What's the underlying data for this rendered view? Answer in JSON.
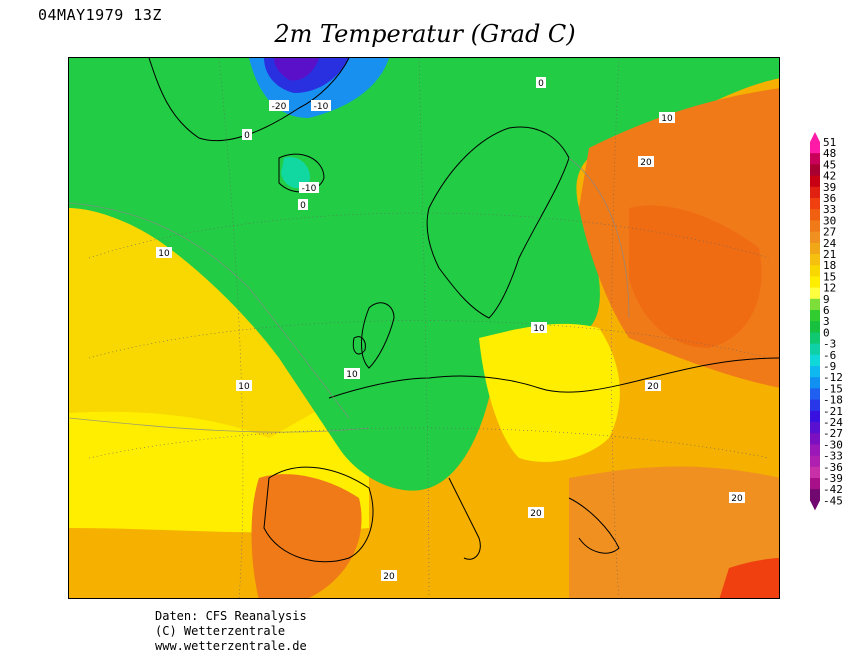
{
  "header": {
    "datetime": "04MAY1979 13Z",
    "title": "2m Temperatur (Grad C)"
  },
  "legend": {
    "ticks": [
      "51",
      "48",
      "45",
      "42",
      "39",
      "36",
      "33",
      "30",
      "27",
      "24",
      "21",
      "18",
      "15",
      "12",
      "9",
      "6",
      "3",
      "0",
      "-3",
      "-6",
      "-9",
      "-12",
      "-15",
      "-18",
      "-21",
      "-24",
      "-27",
      "-30",
      "-33",
      "-36",
      "-39",
      "-42",
      "-45"
    ],
    "colors": [
      "#ff1aa8",
      "#c8005a",
      "#a80030",
      "#c80014",
      "#e02010",
      "#f04010",
      "#f06010",
      "#f07a18",
      "#f09020",
      "#f0a818",
      "#f5c010",
      "#f8d800",
      "#ffee00",
      "#ffff40",
      "#7dde3a",
      "#30cc30",
      "#18c040",
      "#10c870",
      "#10d0a8",
      "#10d8d8",
      "#10b8f0",
      "#1090f0",
      "#2060f0",
      "#2838e8",
      "#3810e0",
      "#5a10d0",
      "#7a10c0",
      "#9a18b8",
      "#b020b0",
      "#c830a8",
      "#a8108a",
      "#700870"
    ]
  },
  "map": {
    "contour_labels": [
      "-20",
      "-10",
      "0",
      "10",
      "20"
    ],
    "colors": {
      "hot": "#f07a18",
      "warm": "#f5a800",
      "mild": "#f8cc00",
      "cool": "#ffee00",
      "green": "#22cc44",
      "green_light": "#5ad835",
      "cyan": "#10d8a0",
      "blue": "#1890f0",
      "deep_blue": "#2830e0",
      "purple": "#5a10c8",
      "coast": "#000000"
    }
  },
  "credits": {
    "line1": "Daten: CFS Reanalysis",
    "line2": "(C) Wetterzentrale",
    "line3": "www.wetterzentrale.de"
  }
}
